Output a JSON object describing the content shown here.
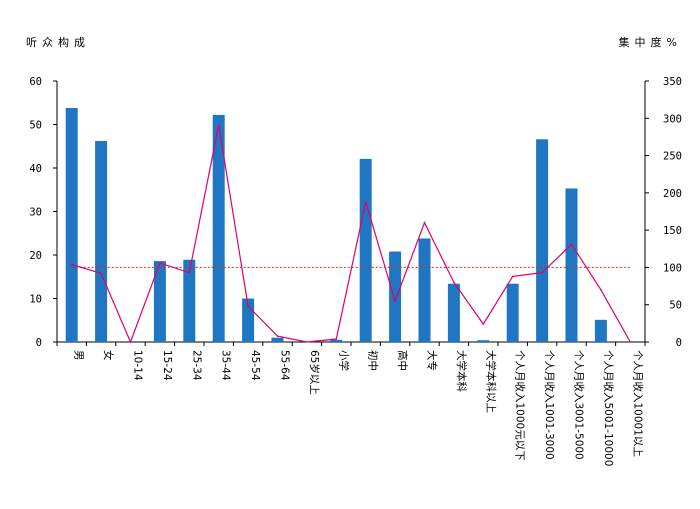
{
  "chart_data": {
    "type": "bar",
    "ylabel": "听众构成",
    "y2label": "集中度%",
    "ylim": [
      0,
      60
    ],
    "yticks": [
      0,
      10,
      20,
      30,
      40,
      50,
      60
    ],
    "y2lim": [
      0,
      350
    ],
    "y2ticks": [
      0,
      50,
      100,
      150,
      200,
      250,
      300,
      350
    ],
    "grid": false,
    "categories": [
      "男",
      "女",
      "10-14",
      "15-24",
      "25-34",
      "35-44",
      "45-54",
      "55-64",
      "65岁以上",
      "小学",
      "初中",
      "高中",
      "大专",
      "大学本科",
      "大学本科以上",
      "个人月收入1000元以下",
      "个人月收入1001-3000",
      "个人月收入3001-5000",
      "个人月收入5001-10000",
      "个人月收入10001以上"
    ],
    "series": [
      {
        "kind": "bar",
        "axis": "left",
        "color": "#1f77c4",
        "values": [
          53.8,
          46.2,
          0,
          18.6,
          18.9,
          52.2,
          10.0,
          1.0,
          0,
          0.5,
          42.1,
          20.8,
          23.8,
          13.4,
          0.4,
          13.4,
          46.6,
          35.3,
          5.1,
          0
        ]
      },
      {
        "kind": "line",
        "axis": "right",
        "color": "#e0006c",
        "values": [
          104,
          92,
          0,
          106,
          93,
          291,
          48,
          8,
          0,
          4,
          188,
          55,
          160,
          80,
          24,
          88,
          93,
          131,
          70,
          0
        ]
      },
      {
        "kind": "reference",
        "axis": "right",
        "color": "#e8231f",
        "value": 100
      }
    ]
  }
}
